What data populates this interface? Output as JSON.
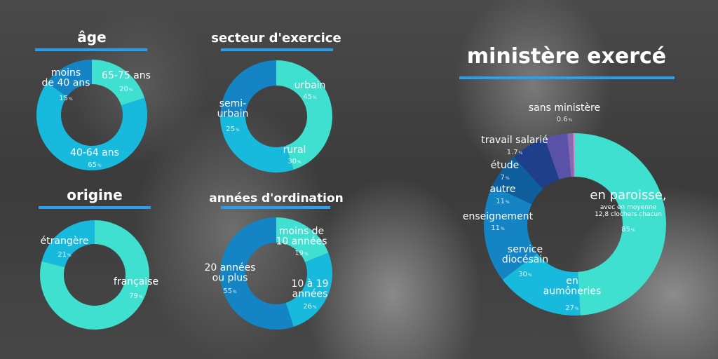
{
  "colors": {
    "accent": "#2a9ff0",
    "teal": "#3fe0d0",
    "cyan": "#17b9dc",
    "blue": "#1484c4",
    "darkblue": "#0f5e9e",
    "navy": "#1f3f8a",
    "indigo": "#5a52a8",
    "purple": "#8a68b4",
    "pink": "#c890c8"
  },
  "chart_data": [
    {
      "type": "pie",
      "title": "âge",
      "slices": [
        {
          "label": [
            "65-75 ans"
          ],
          "value": 20,
          "value_text": "20"
        },
        {
          "label": [
            "40-64 ans"
          ],
          "value": 65,
          "value_text": "65"
        },
        {
          "label": [
            "moins",
            "de 40 ans"
          ],
          "value": 15,
          "value_text": "15"
        }
      ]
    },
    {
      "type": "pie",
      "title": "secteur d'exercice",
      "slices": [
        {
          "label": [
            "urbain"
          ],
          "value": 45,
          "value_text": "45"
        },
        {
          "label": [
            "rural"
          ],
          "value": 30,
          "value_text": "30"
        },
        {
          "label": [
            "semi-",
            "urbain"
          ],
          "value": 25,
          "value_text": "25"
        }
      ]
    },
    {
      "type": "pie",
      "title": "origine",
      "slices": [
        {
          "label": [
            "française"
          ],
          "value": 79,
          "value_text": "79"
        },
        {
          "label": [
            "étrangère"
          ],
          "value": 21,
          "value_text": "21"
        }
      ]
    },
    {
      "type": "pie",
      "title": "années d'ordination",
      "slices": [
        {
          "label": [
            "moins de",
            "10 années"
          ],
          "value": 19,
          "value_text": "19"
        },
        {
          "label": [
            "10 à 19",
            "années"
          ],
          "value": 26,
          "value_text": "26"
        },
        {
          "label": [
            "20 années",
            "ou plus"
          ],
          "value": 55,
          "value_text": "55"
        }
      ]
    },
    {
      "type": "pie",
      "title": "ministère exercé",
      "slices": [
        {
          "label": [
            "en paroisse,"
          ],
          "sublabel": [
            "avec en moyenne",
            "12,8 clochers chacun"
          ],
          "value": 85,
          "value_text": "85"
        },
        {
          "label": [
            "en",
            "aumôneries"
          ],
          "value": 27,
          "value_text": "27"
        },
        {
          "label": [
            "service",
            "diocésain"
          ],
          "value": 30,
          "value_text": "30"
        },
        {
          "label": [
            "enseignement"
          ],
          "value": 11,
          "value_text": "11"
        },
        {
          "label": [
            "autre"
          ],
          "value": 11,
          "value_text": "11"
        },
        {
          "label": [
            "étude"
          ],
          "value": 7,
          "value_text": "7"
        },
        {
          "label": [
            "travail salarié"
          ],
          "value": 1.7,
          "value_text": "1.7"
        },
        {
          "label": [
            "sans ministère"
          ],
          "value": 0.6,
          "value_text": "0.6"
        }
      ]
    }
  ]
}
